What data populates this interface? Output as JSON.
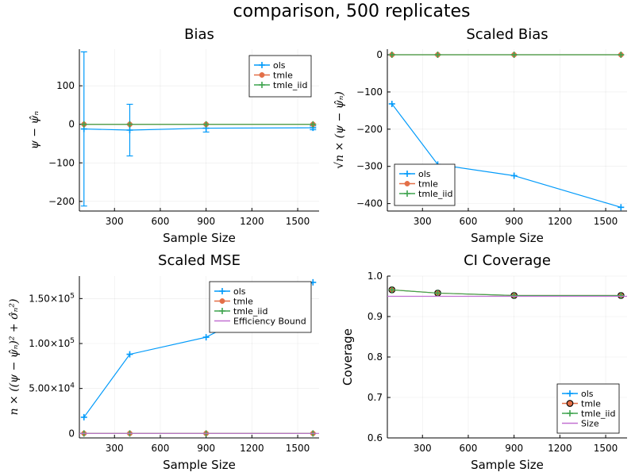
{
  "suptitle": "comparison, 500 replicates",
  "colors": {
    "ols": "#009AFA",
    "tmle": "#E36F47",
    "tmle_iid": "#3EA44E",
    "bound": "#C271D2"
  },
  "chart_data": [
    {
      "id": "bias",
      "type": "line",
      "title": "Bias",
      "xlabel": "Sample Size",
      "ylabel": "ψ − ψ̂ₙ",
      "xlim": [
        70,
        1640
      ],
      "ylim": [
        -225,
        195
      ],
      "xticks": [
        300,
        600,
        900,
        1200,
        1500
      ],
      "xtick_labels": [
        "300",
        "600",
        "900",
        "1200",
        "1500"
      ],
      "yticks": [
        100,
        0,
        -100,
        -200
      ],
      "ytick_labels": [
        "100",
        "0",
        "−100",
        "−200"
      ],
      "grid": true,
      "legend_position": "top-right",
      "x": [
        100,
        400,
        900,
        1600
      ],
      "series": [
        {
          "name": "ols",
          "key": "ols",
          "marker": "plus",
          "values": [
            -12,
            -15,
            -10,
            -9
          ],
          "errorbars": [
            200,
            67,
            10,
            5
          ]
        },
        {
          "name": "tmle",
          "key": "tmle",
          "marker": "dot",
          "values": [
            0,
            0,
            0,
            0
          ]
        },
        {
          "name": "tmle_iid",
          "key": "tmle_iid",
          "marker": "plus",
          "values": [
            0,
            0,
            0,
            0
          ]
        }
      ]
    },
    {
      "id": "scaled_bias",
      "type": "line",
      "title": "Scaled Bias",
      "xlabel": "Sample Size",
      "ylabel": "√n × (ψ − ψ̂ₙ)",
      "xlim": [
        70,
        1640
      ],
      "ylim": [
        -420,
        15
      ],
      "xticks": [
        300,
        600,
        900,
        1200,
        1500
      ],
      "xtick_labels": [
        "300",
        "600",
        "900",
        "1200",
        "1500"
      ],
      "yticks": [
        0,
        -100,
        -200,
        -300,
        -400
      ],
      "ytick_labels": [
        "0",
        "−100",
        "−200",
        "−300",
        "−400"
      ],
      "grid": true,
      "legend_position": "bottom-left",
      "x": [
        100,
        400,
        900,
        1600
      ],
      "series": [
        {
          "name": "ols",
          "key": "ols",
          "marker": "plus",
          "values": [
            -132,
            -295,
            -325,
            -410
          ]
        },
        {
          "name": "tmle",
          "key": "tmle",
          "marker": "dot",
          "values": [
            0,
            0,
            0,
            0
          ]
        },
        {
          "name": "tmle_iid",
          "key": "tmle_iid",
          "marker": "plus",
          "values": [
            0,
            0,
            0,
            0
          ]
        }
      ]
    },
    {
      "id": "scaled_mse",
      "type": "line",
      "title": "Scaled MSE",
      "xlabel": "Sample Size",
      "ylabel": "n × ((ψ − ψ̂ₙ)² + σ̂ₙ²)",
      "xlim": [
        70,
        1640
      ],
      "ylim": [
        -5000,
        175000
      ],
      "xticks": [
        300,
        600,
        900,
        1200,
        1500
      ],
      "xtick_labels": [
        "300",
        "600",
        "900",
        "1200",
        "1500"
      ],
      "yticks": [
        0,
        50000,
        100000,
        150000
      ],
      "ytick_labels": [
        {
          "m": "0",
          "e": ""
        },
        {
          "m": "5.00×10",
          "e": "4"
        },
        {
          "m": "1.00×10",
          "e": "5"
        },
        {
          "m": "1.50×10",
          "e": "5"
        }
      ],
      "grid": true,
      "legend_position": "top-right",
      "x": [
        100,
        400,
        900,
        1600
      ],
      "series": [
        {
          "name": "ols",
          "key": "ols",
          "marker": "plus",
          "values": [
            18000,
            88000,
            107000,
            168000
          ]
        },
        {
          "name": "tmle",
          "key": "tmle",
          "marker": "dot",
          "values": [
            0,
            0,
            0,
            0
          ]
        },
        {
          "name": "tmle_iid",
          "key": "tmle_iid",
          "marker": "plus",
          "values": [
            0,
            0,
            0,
            0
          ]
        },
        {
          "name": "Efficiency Bound",
          "key": "bound",
          "marker": "none",
          "values": [
            0,
            0,
            0,
            0
          ]
        }
      ]
    },
    {
      "id": "ci_coverage",
      "type": "line",
      "title": "CI Coverage",
      "xlabel": "Sample Size",
      "ylabel": "Coverage",
      "xlim": [
        70,
        1640
      ],
      "ylim": [
        0.6,
        1.0
      ],
      "xticks": [
        300,
        600,
        900,
        1200,
        1500
      ],
      "xtick_labels": [
        "300",
        "600",
        "900",
        "1200",
        "1500"
      ],
      "yticks": [
        0.6,
        0.7,
        0.8,
        0.9,
        1.0
      ],
      "ytick_labels": [
        "0.6",
        "0.7",
        "0.8",
        "0.9",
        "1.0"
      ],
      "grid": true,
      "legend_position": "bottom-right",
      "x": [
        100,
        400,
        900,
        1600
      ],
      "series": [
        {
          "name": "ols",
          "key": "ols",
          "marker": "plus",
          "values": [
            null,
            null,
            null,
            null
          ]
        },
        {
          "name": "tmle",
          "key": "tmle",
          "marker": "dot-outline",
          "values": [
            0.966,
            0.958,
            0.952,
            0.952
          ]
        },
        {
          "name": "tmle_iid",
          "key": "tmle_iid",
          "marker": "plus",
          "values": [
            0.966,
            0.958,
            0.952,
            0.952
          ]
        },
        {
          "name": "Size",
          "key": "bound",
          "marker": "none",
          "hline": 0.95
        }
      ]
    }
  ]
}
